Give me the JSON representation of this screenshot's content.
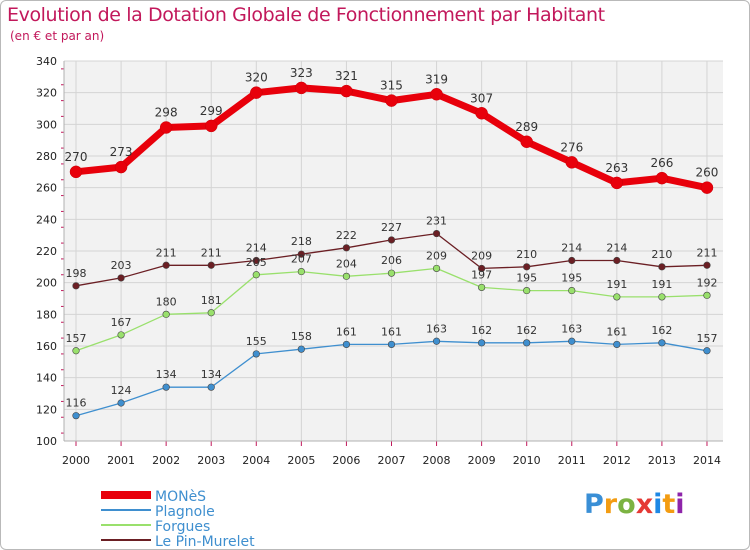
{
  "header": {
    "title": "Evolution de la Dotation Globale de Fonctionnement par Habitant",
    "subtitle": "(en € et par an)"
  },
  "chart_data": {
    "type": "line",
    "title": "Evolution de la Dotation Globale de Fonctionnement par Habitant",
    "subtitle": "(en € et par an)",
    "xlabel": "",
    "ylabel": "",
    "x": [
      "2000",
      "2001",
      "2002",
      "2003",
      "2004",
      "2005",
      "2006",
      "2007",
      "2008",
      "2009",
      "2010",
      "2011",
      "2012",
      "2013",
      "2014"
    ],
    "ylim": [
      100,
      340
    ],
    "yticks": [
      100,
      120,
      140,
      160,
      180,
      200,
      220,
      240,
      260,
      280,
      300,
      320,
      340
    ],
    "grid": true,
    "legend_position": "bottom-left",
    "series": [
      {
        "name": "MONèS",
        "color": "#e8000b",
        "values": [
          270,
          273,
          298,
          299,
          320,
          323,
          321,
          315,
          319,
          307,
          289,
          276,
          263,
          266,
          260
        ]
      },
      {
        "name": "Plagnole",
        "color": "#3f8fcf",
        "values": [
          116,
          124,
          134,
          134,
          155,
          158,
          161,
          161,
          163,
          162,
          162,
          163,
          161,
          162,
          157
        ]
      },
      {
        "name": "Forgues",
        "color": "#99e06c",
        "values": [
          157,
          167,
          180,
          181,
          205,
          207,
          204,
          206,
          209,
          197,
          195,
          195,
          191,
          191,
          192
        ]
      },
      {
        "name": "Le Pin-Murelet",
        "color": "#6b1f24",
        "values": [
          198,
          203,
          211,
          211,
          214,
          218,
          222,
          227,
          231,
          209,
          210,
          214,
          214,
          210,
          211
        ]
      }
    ]
  },
  "logo": {
    "letters": [
      "P",
      "r",
      "o",
      "x",
      "i",
      "t",
      "i"
    ]
  }
}
